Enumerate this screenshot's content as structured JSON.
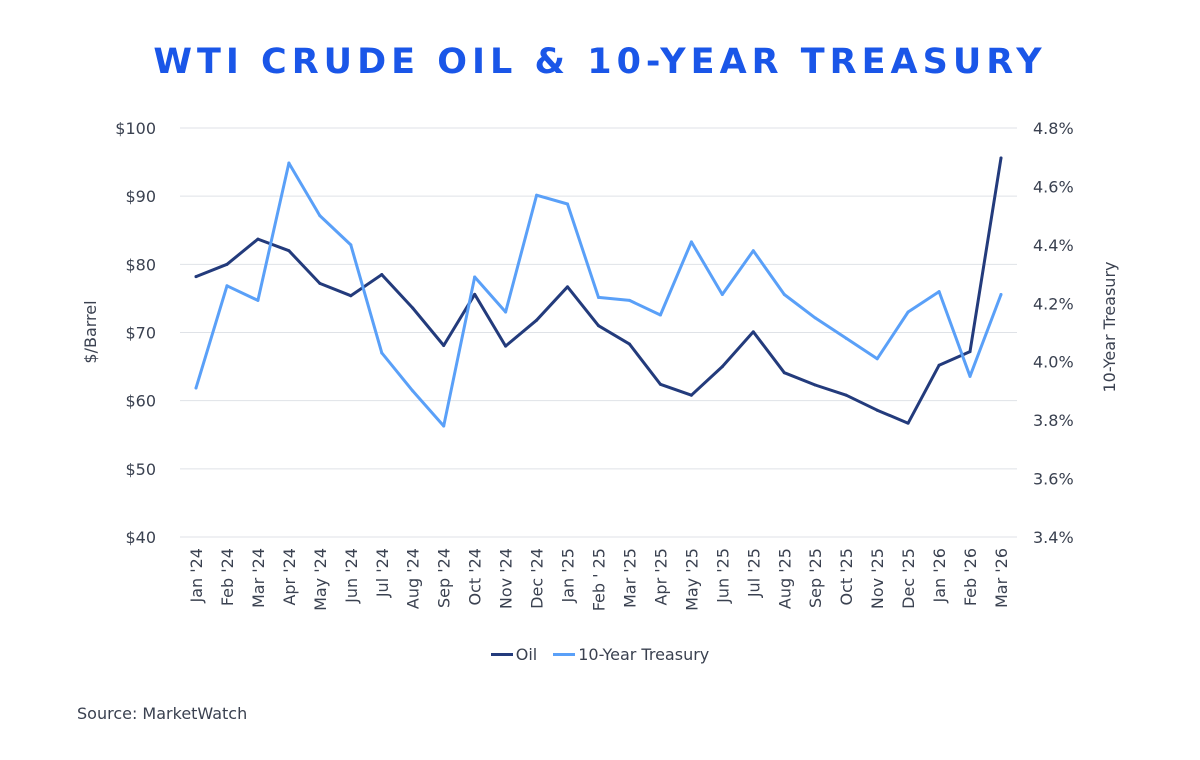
{
  "chart_data": {
    "type": "line",
    "title": "WTI CRUDE OIL & 10-YEAR TREASURY",
    "categories": [
      "Jan '24",
      "Feb '24",
      "Mar '24",
      "Apr '24",
      "May '24",
      "Jun '24",
      "Jul '24",
      "Aug '24",
      "Sep '24",
      "Oct '24",
      "Nov '24",
      "Dec '24",
      "Jan '25",
      "Feb ' 25",
      "Mar '25",
      "Apr '25",
      "May '25",
      "Jun '25",
      "Jul '25",
      "Aug '25",
      "Sep '25",
      "Oct '25",
      "Nov '25",
      "Dec '25",
      "Jan '26",
      "Feb '26",
      "Mar '26"
    ],
    "ylabel": "$/Barrel",
    "y2label": "10-Year Treasury",
    "ylim": [
      40,
      100
    ],
    "y2lim": [
      3.4,
      4.8
    ],
    "yticks": [
      "$100",
      "$90",
      "$80",
      "$70",
      "$60",
      "$50",
      "$40"
    ],
    "y2ticks": [
      "4.8%",
      "4.6%",
      "4.4%",
      "4.2%",
      "4.0%",
      "3.8%",
      "3.6%",
      "3.4%"
    ],
    "grid": true,
    "legend_position": "bottom",
    "series": [
      {
        "name": "Oil",
        "axis": "left",
        "color": "#233b7c",
        "values": [
          78.2,
          80.0,
          83.7,
          82.0,
          77.2,
          75.4,
          78.5,
          73.6,
          68.1,
          75.6,
          68.0,
          71.8,
          76.7,
          71.0,
          68.3,
          62.4,
          60.8,
          65.0,
          70.1,
          64.1,
          62.3,
          60.8,
          58.6,
          56.7,
          65.2,
          67.2,
          95.6
        ]
      },
      {
        "name": "10-Year Treasury",
        "axis": "right",
        "color": "#5aa0f8",
        "values": [
          3.91,
          4.26,
          4.21,
          4.68,
          4.5,
          4.4,
          4.03,
          3.9,
          3.78,
          4.29,
          4.17,
          4.57,
          4.54,
          4.22,
          4.21,
          4.16,
          4.41,
          4.23,
          4.38,
          4.23,
          4.15,
          4.08,
          4.01,
          4.17,
          4.24,
          3.95,
          4.23
        ]
      }
    ]
  },
  "source": "Source: MarketWatch"
}
